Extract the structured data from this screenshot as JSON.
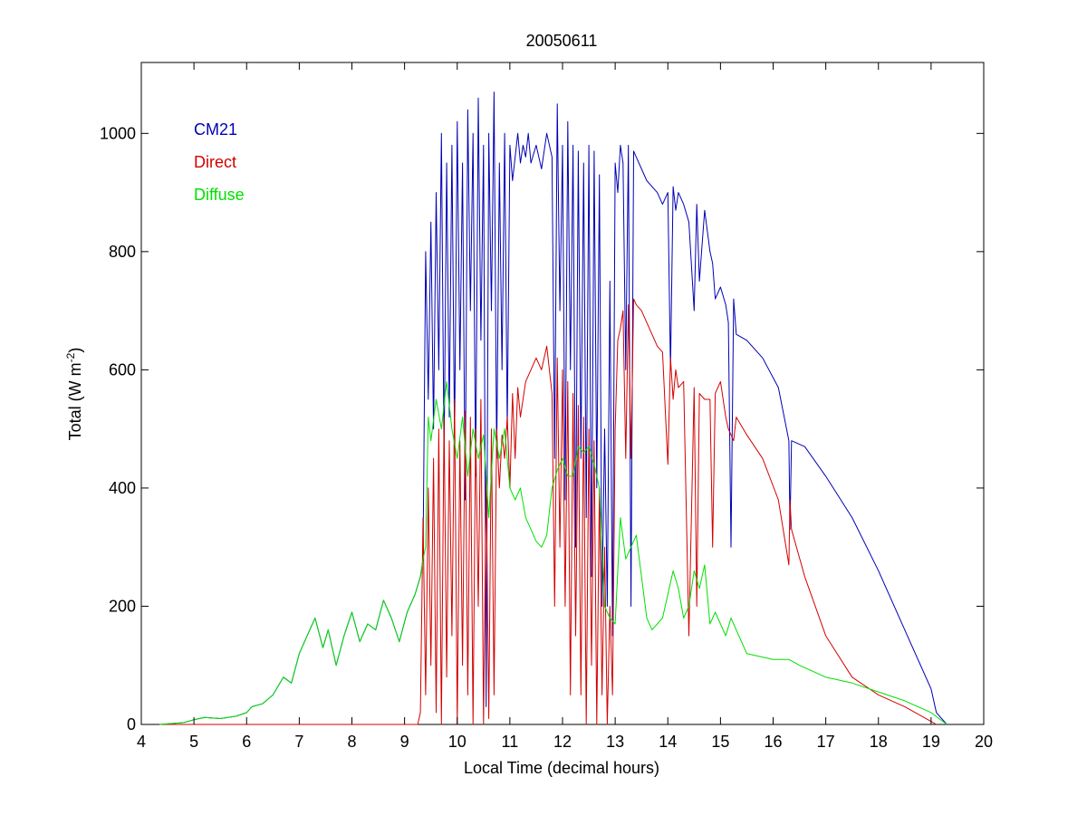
{
  "chart_data": {
    "type": "line",
    "title": "20050611",
    "xlabel": "Local Time (decimal hours)",
    "ylabel": {
      "main": "Total (W m",
      "sup": "-2",
      "close": ")"
    },
    "xlim": [
      4,
      20
    ],
    "ylim": [
      0,
      1120
    ],
    "xticks": [
      4,
      5,
      6,
      7,
      8,
      9,
      10,
      11,
      12,
      13,
      14,
      15,
      16,
      17,
      18,
      19,
      20
    ],
    "yticks": [
      0,
      200,
      400,
      600,
      800,
      1000
    ],
    "grid": false,
    "legend_position": "top-left",
    "series": [
      {
        "name": "CM21",
        "color": "#0000b4",
        "x": [
          4.35,
          4.8,
          5.0,
          5.2,
          5.5,
          5.8,
          6.0,
          6.1,
          6.3,
          6.5,
          6.7,
          6.85,
          7.0,
          7.15,
          7.3,
          7.45,
          7.55,
          7.7,
          7.85,
          8.0,
          8.15,
          8.3,
          8.45,
          8.6,
          8.75,
          8.9,
          9.05,
          9.2,
          9.3,
          9.35,
          9.4,
          9.45,
          9.5,
          9.55,
          9.6,
          9.65,
          9.7,
          9.75,
          9.8,
          9.85,
          9.9,
          9.95,
          10.0,
          10.05,
          10.1,
          10.15,
          10.2,
          10.25,
          10.3,
          10.35,
          10.4,
          10.45,
          10.5,
          10.55,
          10.6,
          10.65,
          10.7,
          10.75,
          10.8,
          10.85,
          10.9,
          10.95,
          11.0,
          11.05,
          11.1,
          11.15,
          11.2,
          11.25,
          11.3,
          11.35,
          11.4,
          11.5,
          11.6,
          11.7,
          11.8,
          11.85,
          11.9,
          11.95,
          12.0,
          12.05,
          12.1,
          12.15,
          12.2,
          12.25,
          12.3,
          12.35,
          12.4,
          12.45,
          12.5,
          12.55,
          12.6,
          12.65,
          12.7,
          12.75,
          12.8,
          12.85,
          12.9,
          12.95,
          13.0,
          13.05,
          13.1,
          13.15,
          13.2,
          13.25,
          13.3,
          13.35,
          13.4,
          13.5,
          13.6,
          13.7,
          13.8,
          13.9,
          14.0,
          14.05,
          14.1,
          14.15,
          14.2,
          14.3,
          14.4,
          14.5,
          14.55,
          14.6,
          14.7,
          14.8,
          14.85,
          14.9,
          15.0,
          15.1,
          15.15,
          15.2,
          15.25,
          15.3,
          15.5,
          15.8,
          16.1,
          16.3,
          16.32,
          16.35,
          16.6,
          17.0,
          17.5,
          18.0,
          18.5,
          19.0,
          19.1,
          19.3
        ],
        "y": [
          0,
          3,
          8,
          12,
          10,
          14,
          20,
          30,
          35,
          50,
          80,
          70,
          120,
          150,
          180,
          130,
          160,
          100,
          150,
          190,
          140,
          170,
          160,
          210,
          180,
          140,
          190,
          220,
          250,
          280,
          800,
          550,
          850,
          500,
          900,
          600,
          1000,
          450,
          950,
          520,
          980,
          480,
          1020,
          600,
          950,
          380,
          1040,
          700,
          1000,
          420,
          1060,
          650,
          980,
          30,
          1000,
          700,
          1070,
          450,
          950,
          600,
          1000,
          500,
          980,
          920,
          960,
          1000,
          950,
          980,
          960,
          1000,
          950,
          980,
          940,
          1000,
          960,
          450,
          1050,
          700,
          980,
          380,
          1020,
          600,
          980,
          300,
          970,
          450,
          950,
          350,
          980,
          250,
          970,
          400,
          930,
          200,
          500,
          200,
          750,
          150,
          950,
          900,
          980,
          950,
          600,
          980,
          200,
          970,
          960,
          940,
          920,
          910,
          900,
          880,
          900,
          600,
          910,
          870,
          900,
          880,
          850,
          700,
          880,
          750,
          870,
          800,
          780,
          720,
          740,
          710,
          680,
          300,
          720,
          660,
          650,
          620,
          570,
          480,
          330,
          480,
          470,
          420,
          350,
          260,
          160,
          60,
          20,
          0
        ]
      },
      {
        "name": "Direct",
        "color": "#d40000",
        "x": [
          4.35,
          9.0,
          9.25,
          9.3,
          9.35,
          9.4,
          9.45,
          9.5,
          9.55,
          9.6,
          9.65,
          9.7,
          9.75,
          9.8,
          9.85,
          9.9,
          9.95,
          10.0,
          10.05,
          10.1,
          10.15,
          10.2,
          10.25,
          10.3,
          10.35,
          10.4,
          10.45,
          10.5,
          10.55,
          10.6,
          10.65,
          10.7,
          10.75,
          10.8,
          10.85,
          10.9,
          10.95,
          11.0,
          11.05,
          11.1,
          11.15,
          11.2,
          11.3,
          11.4,
          11.5,
          11.6,
          11.7,
          11.8,
          11.85,
          11.9,
          11.95,
          12.0,
          12.05,
          12.1,
          12.15,
          12.2,
          12.25,
          12.3,
          12.35,
          12.4,
          12.45,
          12.5,
          12.55,
          12.6,
          12.65,
          12.7,
          12.75,
          12.8,
          12.85,
          12.9,
          12.95,
          13.0,
          13.05,
          13.1,
          13.15,
          13.2,
          13.25,
          13.3,
          13.35,
          13.4,
          13.5,
          13.6,
          13.7,
          13.8,
          13.9,
          14.0,
          14.05,
          14.1,
          14.15,
          14.2,
          14.3,
          14.4,
          14.5,
          14.55,
          14.6,
          14.7,
          14.8,
          14.85,
          14.9,
          15.0,
          15.1,
          15.15,
          15.2,
          15.25,
          15.3,
          15.5,
          15.8,
          16.1,
          16.3,
          16.32,
          16.35,
          16.6,
          17.0,
          17.5,
          18.0,
          18.5,
          19.0,
          19.1
        ],
        "y": [
          0,
          0,
          0,
          20,
          350,
          50,
          400,
          100,
          450,
          20,
          500,
          0,
          520,
          80,
          480,
          150,
          550,
          0,
          480,
          100,
          530,
          50,
          520,
          0,
          500,
          200,
          550,
          0,
          420,
          10,
          500,
          50,
          500,
          400,
          490,
          450,
          520,
          400,
          560,
          450,
          570,
          520,
          580,
          600,
          620,
          600,
          640,
          560,
          200,
          620,
          300,
          600,
          200,
          580,
          50,
          560,
          150,
          540,
          50,
          520,
          0,
          500,
          100,
          480,
          0,
          400,
          50,
          300,
          0,
          200,
          50,
          500,
          650,
          670,
          700,
          450,
          710,
          450,
          720,
          710,
          700,
          680,
          660,
          640,
          630,
          440,
          620,
          550,
          600,
          570,
          580,
          150,
          570,
          200,
          560,
          550,
          550,
          300,
          560,
          580,
          520,
          500,
          490,
          480,
          520,
          490,
          450,
          380,
          270,
          380,
          330,
          250,
          150,
          80,
          50,
          30,
          5,
          0
        ]
      },
      {
        "name": "Diffuse",
        "color": "#00e000",
        "x": [
          4.35,
          4.8,
          5.0,
          5.2,
          5.5,
          5.8,
          6.0,
          6.1,
          6.3,
          6.5,
          6.7,
          6.85,
          7.0,
          7.15,
          7.3,
          7.45,
          7.55,
          7.7,
          7.85,
          8.0,
          8.15,
          8.3,
          8.45,
          8.6,
          8.75,
          8.9,
          9.05,
          9.2,
          9.3,
          9.35,
          9.4,
          9.45,
          9.5,
          9.6,
          9.7,
          9.8,
          9.9,
          10.0,
          10.1,
          10.2,
          10.3,
          10.4,
          10.5,
          10.6,
          10.7,
          10.8,
          10.9,
          11.0,
          11.1,
          11.2,
          11.3,
          11.4,
          11.5,
          11.6,
          11.7,
          11.8,
          11.9,
          12.0,
          12.1,
          12.2,
          12.3,
          12.4,
          12.5,
          12.6,
          12.7,
          12.8,
          12.9,
          13.0,
          13.1,
          13.2,
          13.3,
          13.4,
          13.5,
          13.6,
          13.7,
          13.8,
          13.9,
          14.0,
          14.1,
          14.2,
          14.3,
          14.4,
          14.5,
          14.6,
          14.7,
          14.8,
          14.9,
          15.0,
          15.1,
          15.2,
          15.3,
          15.5,
          16.0,
          16.3,
          16.5,
          17.0,
          17.5,
          18.0,
          18.5,
          19.0,
          19.3
        ],
        "y": [
          0,
          3,
          8,
          12,
          10,
          14,
          20,
          30,
          35,
          50,
          80,
          70,
          120,
          150,
          180,
          130,
          160,
          100,
          150,
          190,
          140,
          170,
          160,
          210,
          180,
          140,
          190,
          220,
          250,
          280,
          300,
          520,
          480,
          550,
          500,
          580,
          500,
          450,
          520,
          420,
          500,
          450,
          490,
          350,
          500,
          450,
          500,
          400,
          380,
          400,
          350,
          330,
          310,
          300,
          320,
          400,
          430,
          450,
          420,
          420,
          470,
          460,
          470,
          440,
          400,
          200,
          180,
          170,
          350,
          280,
          300,
          320,
          250,
          180,
          160,
          170,
          180,
          220,
          260,
          230,
          180,
          200,
          260,
          230,
          270,
          170,
          190,
          170,
          150,
          180,
          160,
          120,
          110,
          110,
          100,
          80,
          70,
          55,
          40,
          20,
          0
        ]
      }
    ]
  }
}
